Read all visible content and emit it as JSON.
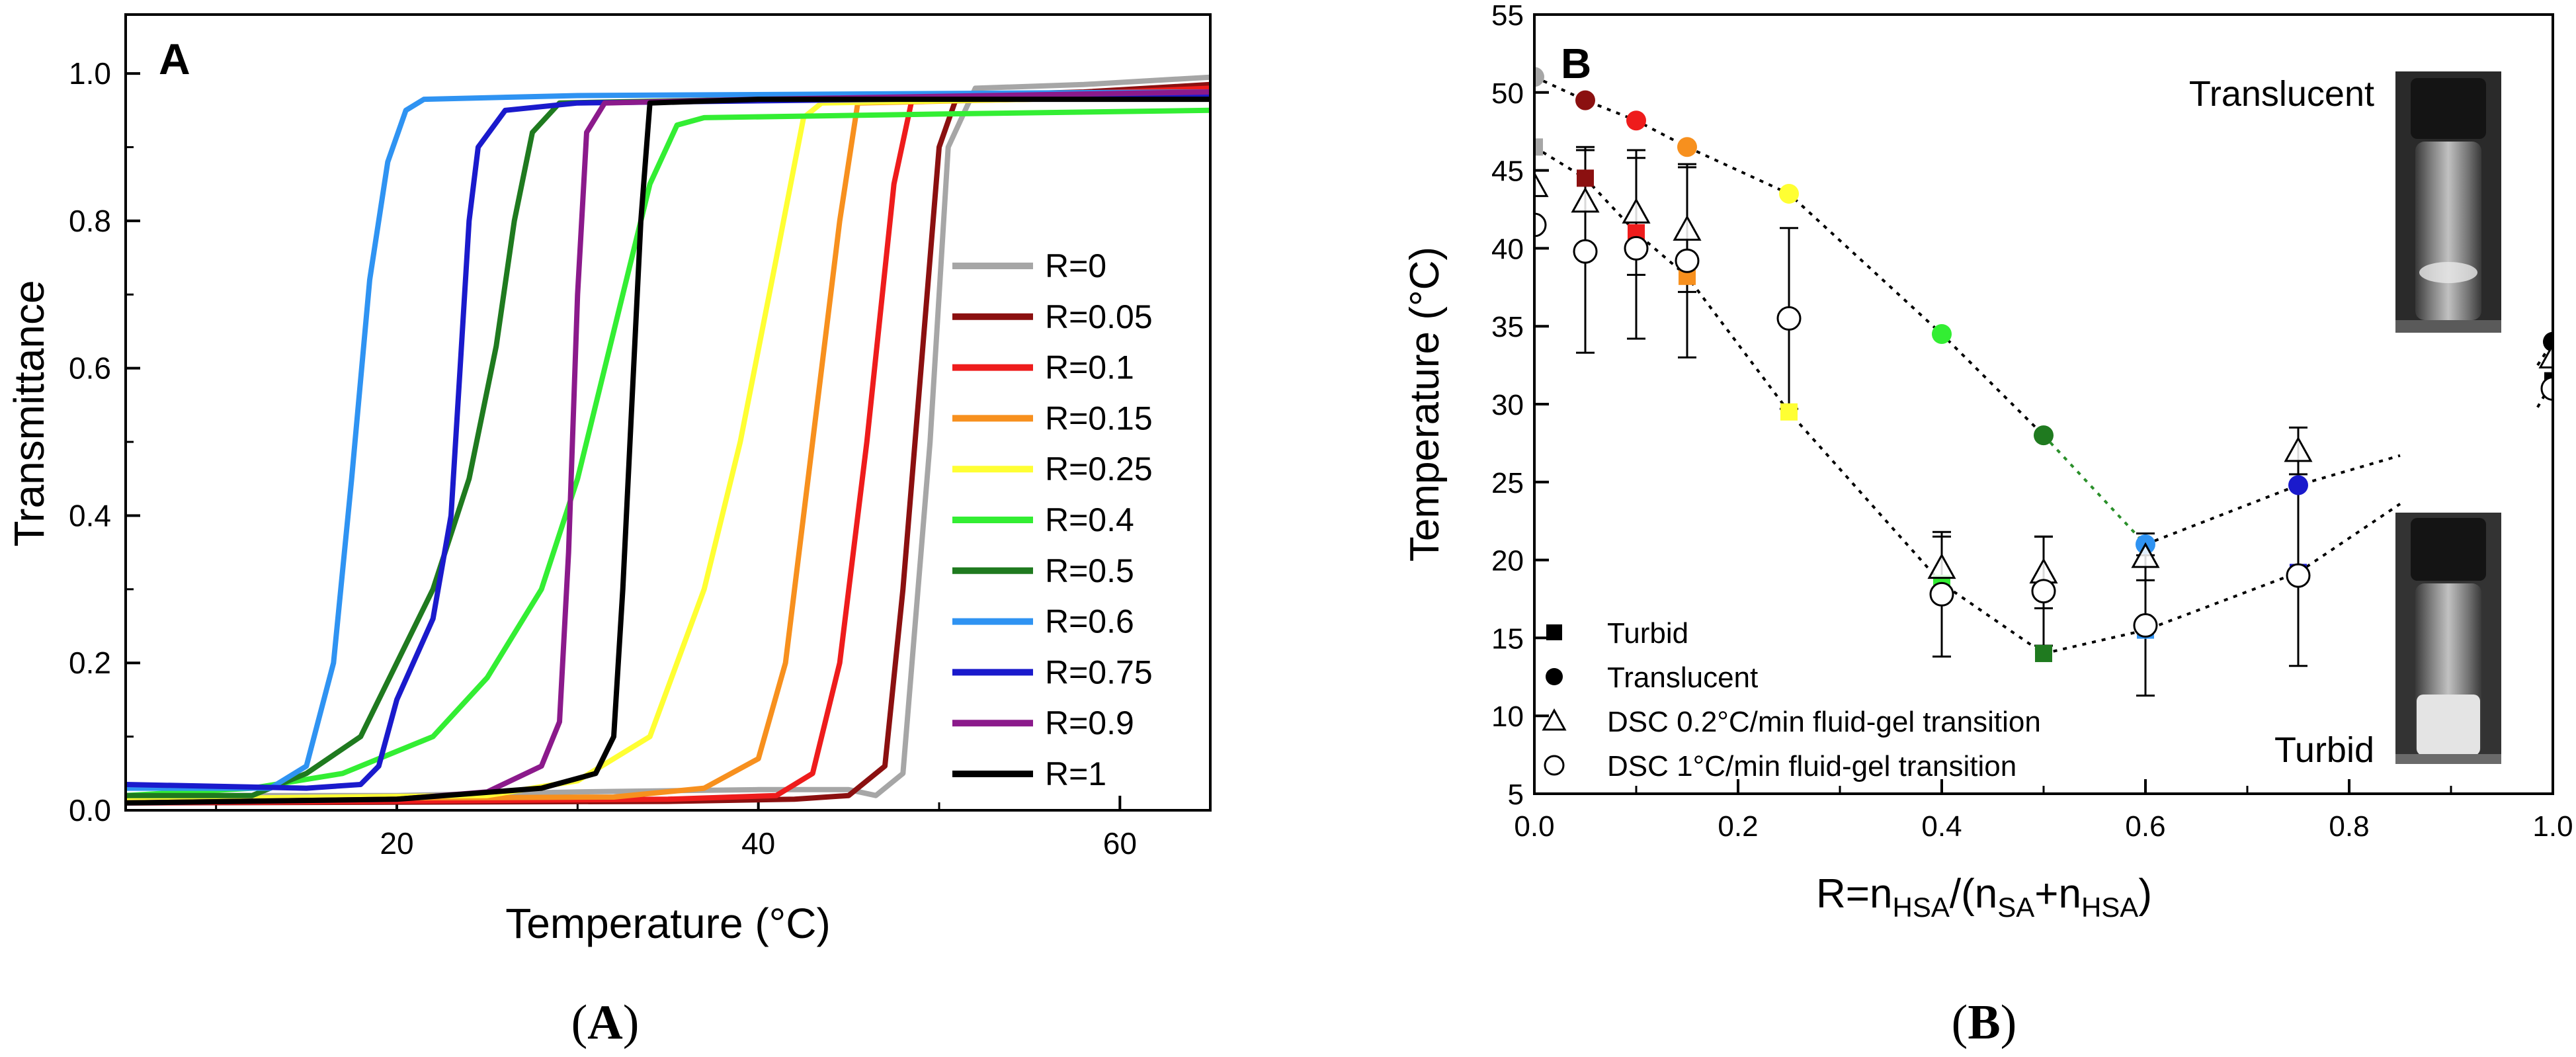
{
  "colors": {
    "R=0": "#a6a6a6",
    "R=0.05": "#8b1010",
    "R=0.1": "#ee1c1c",
    "R=0.15": "#f7901e",
    "R=0.25": "#ffff33",
    "R=0.4": "#33ee33",
    "R=0.5": "#1f7a1f",
    "R=0.6": "#2f93f2",
    "R=0.75": "#1a1acc",
    "R=0.9": "#8b1a8b",
    "R=1": "#000000"
  },
  "captions": {
    "a_open": "(",
    "a_letter": "A",
    "a_close": ")",
    "b_open": "(",
    "b_letter": "B",
    "b_close": ")"
  },
  "chart_data": [
    {
      "panel": "A",
      "type": "line",
      "title": "",
      "xlabel": "Temperature (°C)",
      "ylabel": "Transmittance",
      "xlim": [
        5,
        65
      ],
      "ylim": [
        0,
        1.08
      ],
      "xticks": [
        20,
        40,
        60
      ],
      "yticks": [
        0.0,
        0.2,
        0.4,
        0.6,
        0.8,
        1.0
      ],
      "ytick_labels": [
        "0.0",
        "0.2",
        "0.4",
        "0.6",
        "0.8",
        "1.0"
      ],
      "legend_position": "right",
      "series": [
        {
          "name": "R=0",
          "color_key": "R=0",
          "points": [
            [
              5,
              0.02
            ],
            [
              20,
              0.02
            ],
            [
              30,
              0.025
            ],
            [
              40,
              0.028
            ],
            [
              45,
              0.028
            ],
            [
              46.5,
              0.02
            ],
            [
              48,
              0.05
            ],
            [
              49.5,
              0.5
            ],
            [
              50.5,
              0.9
            ],
            [
              52,
              0.98
            ],
            [
              58,
              0.985
            ],
            [
              65,
              0.995
            ]
          ]
        },
        {
          "name": "R=0.05",
          "color_key": "R=0.05",
          "points": [
            [
              5,
              0.01
            ],
            [
              35,
              0.012
            ],
            [
              42,
              0.015
            ],
            [
              45,
              0.02
            ],
            [
              47,
              0.06
            ],
            [
              48,
              0.3
            ],
            [
              49,
              0.6
            ],
            [
              50,
              0.9
            ],
            [
              51,
              0.97
            ],
            [
              58,
              0.975
            ],
            [
              65,
              0.985
            ]
          ]
        },
        {
          "name": "R=0.1",
          "color_key": "R=0.1",
          "points": [
            [
              5,
              0.01
            ],
            [
              35,
              0.015
            ],
            [
              41,
              0.02
            ],
            [
              43,
              0.05
            ],
            [
              44.5,
              0.2
            ],
            [
              46,
              0.5
            ],
            [
              47.5,
              0.85
            ],
            [
              48.5,
              0.965
            ],
            [
              55,
              0.97
            ],
            [
              65,
              0.98
            ]
          ]
        },
        {
          "name": "R=0.15",
          "color_key": "R=0.15",
          "points": [
            [
              5,
              0.015
            ],
            [
              32,
              0.018
            ],
            [
              37,
              0.03
            ],
            [
              40,
              0.07
            ],
            [
              41.5,
              0.2
            ],
            [
              43,
              0.5
            ],
            [
              44.5,
              0.8
            ],
            [
              45.5,
              0.96
            ],
            [
              55,
              0.965
            ],
            [
              65,
              0.975
            ]
          ]
        },
        {
          "name": "R=0.25",
          "color_key": "R=0.25",
          "points": [
            [
              5,
              0.015
            ],
            [
              25,
              0.02
            ],
            [
              30,
              0.04
            ],
            [
              34,
              0.1
            ],
            [
              37,
              0.3
            ],
            [
              39,
              0.5
            ],
            [
              41,
              0.75
            ],
            [
              42.5,
              0.94
            ],
            [
              43.5,
              0.96
            ],
            [
              55,
              0.965
            ],
            [
              65,
              0.97
            ]
          ]
        },
        {
          "name": "R=0.4",
          "color_key": "R=0.4",
          "points": [
            [
              5,
              0.02
            ],
            [
              12,
              0.03
            ],
            [
              17,
              0.05
            ],
            [
              22,
              0.1
            ],
            [
              25,
              0.18
            ],
            [
              28,
              0.3
            ],
            [
              30,
              0.45
            ],
            [
              32,
              0.65
            ],
            [
              34,
              0.85
            ],
            [
              35.5,
              0.93
            ],
            [
              37,
              0.94
            ],
            [
              50,
              0.945
            ],
            [
              65,
              0.95
            ]
          ]
        },
        {
          "name": "R=0.5",
          "color_key": "R=0.5",
          "points": [
            [
              5,
              0.02
            ],
            [
              12,
              0.02
            ],
            [
              15,
              0.05
            ],
            [
              18,
              0.1
            ],
            [
              20,
              0.2
            ],
            [
              22,
              0.3
            ],
            [
              24,
              0.45
            ],
            [
              25.5,
              0.63
            ],
            [
              26.5,
              0.8
            ],
            [
              27.5,
              0.92
            ],
            [
              29,
              0.96
            ],
            [
              40,
              0.965
            ],
            [
              65,
              0.97
            ]
          ]
        },
        {
          "name": "R=0.6",
          "color_key": "R=0.6",
          "points": [
            [
              5,
              0.03
            ],
            [
              13,
              0.03
            ],
            [
              15,
              0.06
            ],
            [
              16.5,
              0.2
            ],
            [
              17.5,
              0.45
            ],
            [
              18.5,
              0.72
            ],
            [
              19.5,
              0.88
            ],
            [
              20.5,
              0.95
            ],
            [
              21.5,
              0.965
            ],
            [
              30,
              0.97
            ],
            [
              65,
              0.975
            ]
          ]
        },
        {
          "name": "R=0.75",
          "color_key": "R=0.75",
          "points": [
            [
              5,
              0.035
            ],
            [
              15,
              0.03
            ],
            [
              18,
              0.035
            ],
            [
              19,
              0.06
            ],
            [
              20,
              0.15
            ],
            [
              22,
              0.26
            ],
            [
              23,
              0.4
            ],
            [
              23.5,
              0.6
            ],
            [
              24,
              0.8
            ],
            [
              24.5,
              0.9
            ],
            [
              26,
              0.95
            ],
            [
              30,
              0.96
            ],
            [
              65,
              0.97
            ]
          ]
        },
        {
          "name": "R=0.9",
          "color_key": "R=0.9",
          "points": [
            [
              5,
              0.01
            ],
            [
              20,
              0.015
            ],
            [
              25,
              0.025
            ],
            [
              28,
              0.06
            ],
            [
              29,
              0.12
            ],
            [
              29.5,
              0.35
            ],
            [
              30,
              0.7
            ],
            [
              30.5,
              0.92
            ],
            [
              31.5,
              0.96
            ],
            [
              40,
              0.965
            ],
            [
              65,
              0.975
            ]
          ]
        },
        {
          "name": "R=1",
          "color_key": "R=1",
          "points": [
            [
              5,
              0.01
            ],
            [
              20,
              0.015
            ],
            [
              28,
              0.03
            ],
            [
              31,
              0.05
            ],
            [
              32,
              0.1
            ],
            [
              32.5,
              0.3
            ],
            [
              33,
              0.55
            ],
            [
              33.5,
              0.8
            ],
            [
              34,
              0.96
            ],
            [
              40,
              0.965
            ],
            [
              65,
              0.965
            ]
          ]
        }
      ]
    },
    {
      "panel": "B",
      "type": "scatter",
      "title": "",
      "xlabel_parts": [
        "R=n",
        "HSA",
        "/(n",
        "SA",
        "+n",
        "HSA",
        ")"
      ],
      "ylabel": "Temperature (°C)",
      "xlim": [
        0,
        1.0
      ],
      "ylim": [
        5,
        55
      ],
      "xticks": [
        0.0,
        0.2,
        0.4,
        0.6,
        0.8,
        1.0
      ],
      "xtick_labels": [
        "0.0",
        "0.2",
        "0.4",
        "0.6",
        "0.8",
        "1.0"
      ],
      "yticks": [
        5,
        10,
        15,
        20,
        25,
        30,
        35,
        40,
        45,
        50,
        55
      ],
      "annotations": [
        "Translucent",
        "Turbid"
      ],
      "legend_position": "bottom-left",
      "legend": [
        {
          "marker": "square-filled",
          "label": "Turbid"
        },
        {
          "marker": "circle-filled",
          "label": "Translucent"
        },
        {
          "marker": "triangle-open",
          "label": "DSC 0.2°C/min fluid-gel transition"
        },
        {
          "marker": "circle-open",
          "label": "DSC 1°C/min fluid-gel transition"
        }
      ],
      "series": [
        {
          "name": "Translucent",
          "marker": "circle-filled",
          "points": [
            {
              "x": 0.0,
              "y": 51.0,
              "color_key": "R=0"
            },
            {
              "x": 0.05,
              "y": 49.5,
              "color_key": "R=0.05"
            },
            {
              "x": 0.1,
              "y": 48.2,
              "color_key": "R=0.1"
            },
            {
              "x": 0.15,
              "y": 46.5,
              "color_key": "R=0.15"
            },
            {
              "x": 0.25,
              "y": 43.5,
              "color_key": "R=0.25"
            },
            {
              "x": 0.4,
              "y": 34.5,
              "color_key": "R=0.4"
            },
            {
              "x": 0.5,
              "y": 28.0,
              "color_key": "R=0.5"
            },
            {
              "x": 0.6,
              "y": 21.0,
              "color_key": "R=0.6"
            },
            {
              "x": 0.75,
              "y": 24.8,
              "color_key": "R=0.75"
            },
            {
              "x": 1.0,
              "y": 34.0,
              "color_key": "R=1"
            }
          ]
        },
        {
          "name": "Turbid",
          "marker": "square-filled",
          "points": [
            {
              "x": 0.0,
              "y": 46.5,
              "color_key": "R=0"
            },
            {
              "x": 0.05,
              "y": 44.5,
              "color_key": "R=0.05"
            },
            {
              "x": 0.1,
              "y": 41.0,
              "color_key": "R=0.1"
            },
            {
              "x": 0.15,
              "y": 38.2,
              "color_key": "R=0.15"
            },
            {
              "x": 0.25,
              "y": 29.5,
              "color_key": "R=0.25"
            },
            {
              "x": 0.4,
              "y": 18.5,
              "color_key": "R=0.4"
            },
            {
              "x": 0.5,
              "y": 14.0,
              "color_key": "R=0.5"
            },
            {
              "x": 0.6,
              "y": 15.5,
              "color_key": "R=0.6"
            },
            {
              "x": 0.75,
              "y": 19.2,
              "color_key": "R=0.75"
            },
            {
              "x": 1.0,
              "y": 31.5,
              "color_key": "R=1"
            }
          ]
        },
        {
          "name": "DSC 0.2°C/min fluid-gel transition",
          "marker": "triangle-open",
          "points": [
            {
              "x": 0.0,
              "y": 44.0,
              "err": 0
            },
            {
              "x": 0.05,
              "y": 43.0,
              "err": 3.5
            },
            {
              "x": 0.1,
              "y": 42.3,
              "err": 4.0
            },
            {
              "x": 0.15,
              "y": 41.2,
              "err": 4.0
            },
            {
              "x": 0.4,
              "y": 19.5,
              "err": 2.0
            },
            {
              "x": 0.5,
              "y": 19.2,
              "err": 2.3
            },
            {
              "x": 0.6,
              "y": 20.2,
              "err": 1.5
            },
            {
              "x": 0.75,
              "y": 27.0,
              "err": 1.5
            },
            {
              "x": 1.0,
              "y": 33.0,
              "err": 0
            }
          ]
        },
        {
          "name": "DSC 1°C/min fluid-gel transition",
          "marker": "circle-open",
          "points": [
            {
              "x": 0.0,
              "y": 41.5,
              "err": 0
            },
            {
              "x": 0.05,
              "y": 39.8,
              "err": 6.5
            },
            {
              "x": 0.1,
              "y": 40.0,
              "err": 5.8
            },
            {
              "x": 0.15,
              "y": 39.2,
              "err": 6.2
            },
            {
              "x": 0.25,
              "y": 35.5,
              "err": 5.8
            },
            {
              "x": 0.4,
              "y": 17.8,
              "err": 4.0
            },
            {
              "x": 0.5,
              "y": 18.0,
              "err": 3.5
            },
            {
              "x": 0.6,
              "y": 15.8,
              "err": 4.5
            },
            {
              "x": 0.75,
              "y": 19.0,
              "err": 5.8
            },
            {
              "x": 1.0,
              "y": 31.0,
              "err": 0
            }
          ]
        }
      ]
    }
  ]
}
